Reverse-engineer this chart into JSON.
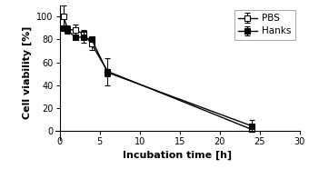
{
  "pbs_x": [
    0.5,
    1,
    2,
    3,
    4,
    6,
    24
  ],
  "pbs_y": [
    100,
    89,
    88,
    85,
    76,
    52,
    1
  ],
  "pbs_yerr": [
    10,
    3,
    5,
    3,
    5,
    12,
    2
  ],
  "hanks_x": [
    0.5,
    1,
    2,
    3,
    4,
    6,
    24
  ],
  "hanks_y": [
    90,
    88,
    82,
    82,
    80,
    51,
    4
  ],
  "hanks_yerr": [
    2,
    3,
    2,
    5,
    2,
    3,
    5
  ],
  "xlabel": "Incubation time [h]",
  "ylabel": "Cell viability [%]",
  "legend_pbs": "PBS",
  "legend_hanks": "Hanks",
  "xlim": [
    -0.5,
    30
  ],
  "ylim": [
    -8,
    110
  ],
  "xticks": [
    0,
    5,
    10,
    15,
    20,
    25,
    30
  ],
  "yticks": [
    0,
    20,
    40,
    60,
    80,
    100
  ],
  "line_color": "#000000",
  "markersize": 4.5,
  "linewidth": 1.0,
  "capsize": 2.5,
  "elinewidth": 0.8,
  "xlabel_fontsize": 8,
  "ylabel_fontsize": 8,
  "tick_fontsize": 7,
  "legend_fontsize": 7.5
}
